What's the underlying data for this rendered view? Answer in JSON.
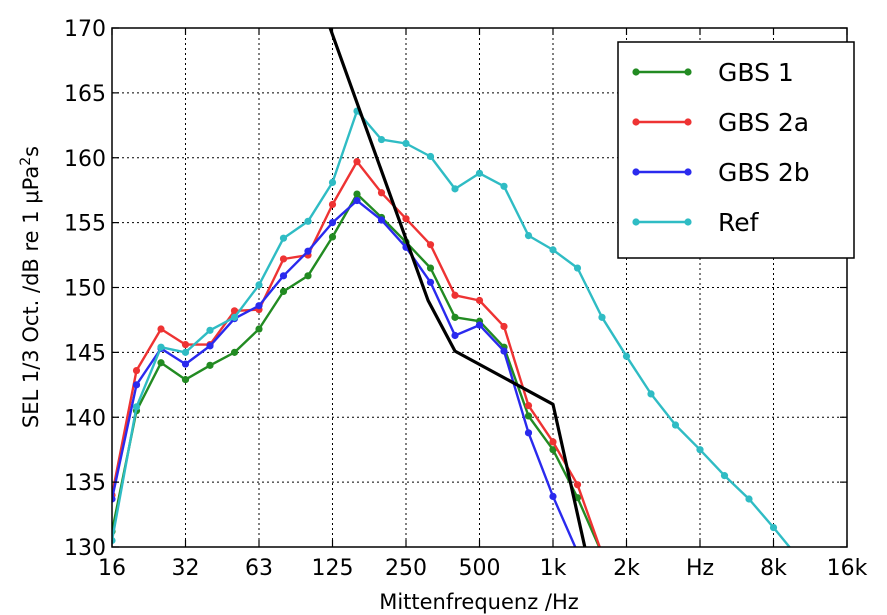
{
  "chart_data": {
    "type": "line",
    "xlabel": "Mittenfrequenz /Hz",
    "ylabel_main": "SEL 1/3 Oct. /dB re 1 μPa",
    "ylabel_sup": "2",
    "ylabel_tail": "s",
    "ylim": [
      130,
      170
    ],
    "yticks": [
      130,
      135,
      140,
      145,
      150,
      155,
      160,
      165,
      170
    ],
    "xlim": [
      0,
      30
    ],
    "x_scale": "third-octave band index (16 Hz = 0)",
    "xticks": [
      {
        "i": 0,
        "label": "16"
      },
      {
        "i": 3,
        "label": "32"
      },
      {
        "i": 6,
        "label": "63"
      },
      {
        "i": 9,
        "label": "125"
      },
      {
        "i": 12,
        "label": "250"
      },
      {
        "i": 15,
        "label": "500"
      },
      {
        "i": 18,
        "label": "1k"
      },
      {
        "i": 21,
        "label": "2k"
      },
      {
        "i": 24,
        "label": "Hz"
      },
      {
        "i": 27,
        "label": "8k"
      },
      {
        "i": 30,
        "label": "16k"
      }
    ],
    "grid": true,
    "legend_position": "top-right",
    "series": [
      {
        "name": "GBS 1",
        "color": "#228b22",
        "x": [
          0,
          1,
          2,
          3,
          4,
          5,
          6,
          7,
          8,
          9,
          10,
          11,
          12,
          13,
          14,
          15,
          16,
          17,
          18,
          19,
          20
        ],
        "y": [
          131.2,
          140.5,
          144.2,
          142.9,
          144.0,
          145.0,
          146.8,
          149.7,
          150.9,
          153.9,
          157.2,
          155.4,
          153.5,
          151.5,
          147.7,
          147.4,
          145.4,
          140.1,
          137.5,
          133.8,
          129.5
        ]
      },
      {
        "name": "GBS 2a",
        "color": "#ee3333",
        "x": [
          0,
          1,
          2,
          3,
          4,
          5,
          6,
          7,
          8,
          9,
          10,
          11,
          12,
          13,
          14,
          15,
          16,
          17,
          18,
          19,
          20
        ],
        "y": [
          134.0,
          143.6,
          146.8,
          145.6,
          145.6,
          148.2,
          148.3,
          152.2,
          152.5,
          156.4,
          159.7,
          157.3,
          155.3,
          153.3,
          149.4,
          149.0,
          147.0,
          140.9,
          138.1,
          134.8,
          129.5
        ]
      },
      {
        "name": "GBS 2b",
        "color": "#2a2aee",
        "x": [
          0,
          1,
          2,
          3,
          4,
          5,
          6,
          7,
          8,
          9,
          10,
          11,
          12,
          13,
          14,
          15,
          16,
          17,
          18,
          19
        ],
        "y": [
          133.7,
          142.5,
          145.3,
          144.1,
          145.5,
          147.6,
          148.6,
          150.9,
          152.8,
          155.0,
          156.7,
          155.2,
          153.1,
          150.4,
          146.3,
          147.1,
          145.1,
          138.8,
          133.9,
          129.6
        ]
      },
      {
        "name": "Ref",
        "color": "#2fbcc4",
        "x": [
          0,
          1,
          2,
          3,
          4,
          5,
          6,
          7,
          8,
          9,
          10,
          11,
          12,
          13,
          14,
          15,
          16,
          17,
          18,
          19,
          20,
          21,
          22,
          23,
          24,
          25,
          26,
          27,
          28
        ],
        "y": [
          130.5,
          140.8,
          145.4,
          145.0,
          146.7,
          147.7,
          150.2,
          153.8,
          155.1,
          158.1,
          163.6,
          161.4,
          161.1,
          160.1,
          157.6,
          158.8,
          157.8,
          154.0,
          152.9,
          151.5,
          147.7,
          144.7,
          141.8,
          139.4,
          137.5,
          135.5,
          133.7,
          131.5,
          129.2
        ]
      },
      {
        "name": "",
        "color": "#000000",
        "markers": false,
        "x": [
          8.9,
          12.9,
          14.0,
          18.0,
          19.3
        ],
        "y": [
          170,
          149.0,
          145.1,
          141.0,
          130
        ]
      }
    ]
  }
}
